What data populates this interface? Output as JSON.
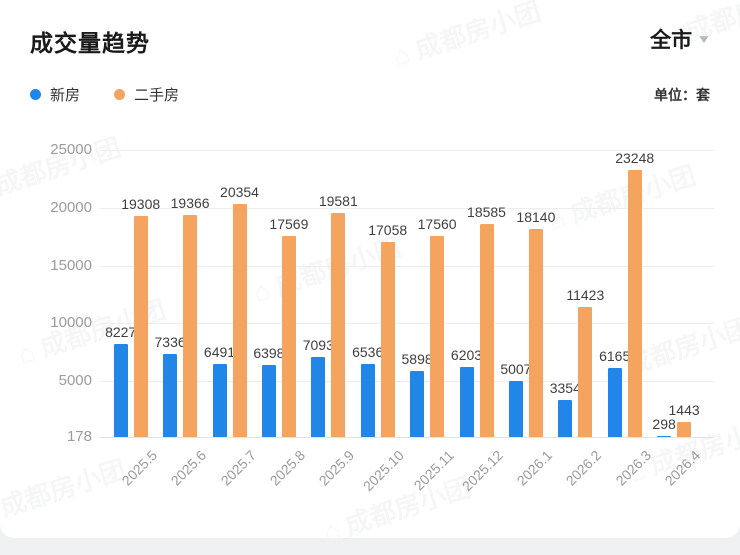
{
  "header": {
    "title": "成交量趋势",
    "region_selector": {
      "label": "全市",
      "caret": "▼"
    },
    "unit_label": "单位：套"
  },
  "legend": [
    {
      "label": "新房",
      "color": "#2286e8"
    },
    {
      "label": "二手房",
      "color": "#f4a45e"
    }
  ],
  "watermark": {
    "text": "⌂ 成都房小团"
  },
  "colors": {
    "new_home": "#2286e8",
    "second_hand": "#f4a45e",
    "grid": "#ededed",
    "axis_text": "#9b9b9b",
    "value_text": "#3f3f3f"
  },
  "chart_data": {
    "type": "bar",
    "title": "成交量趋势",
    "unit": "套",
    "categories": [
      "2025.5",
      "2025.6",
      "2025.7",
      "2025.8",
      "2025.9",
      "2025.10",
      "2025.11",
      "2025.12",
      "2026.1",
      "2026.2",
      "2026.3",
      "2026.4"
    ],
    "series": [
      {
        "name": "新房",
        "color": "#2286e8",
        "values": [
          8227,
          7336,
          6491,
          6398,
          7093,
          6536,
          5898,
          6203,
          5007,
          3354,
          6165,
          298
        ]
      },
      {
        "name": "二手房",
        "color": "#f4a45e",
        "values": [
          19308,
          19366,
          20354,
          17569,
          19581,
          17058,
          17560,
          18585,
          18140,
          11423,
          23248,
          1443
        ]
      }
    ],
    "y_ticks": [
      178,
      5000,
      10000,
      15000,
      20000,
      25000
    ],
    "ylim": [
      178,
      25000
    ],
    "xlabel": "",
    "ylabel": "",
    "grid": true,
    "value_labels": true,
    "legend_position": "top-left",
    "x_label_rotation": 45
  }
}
